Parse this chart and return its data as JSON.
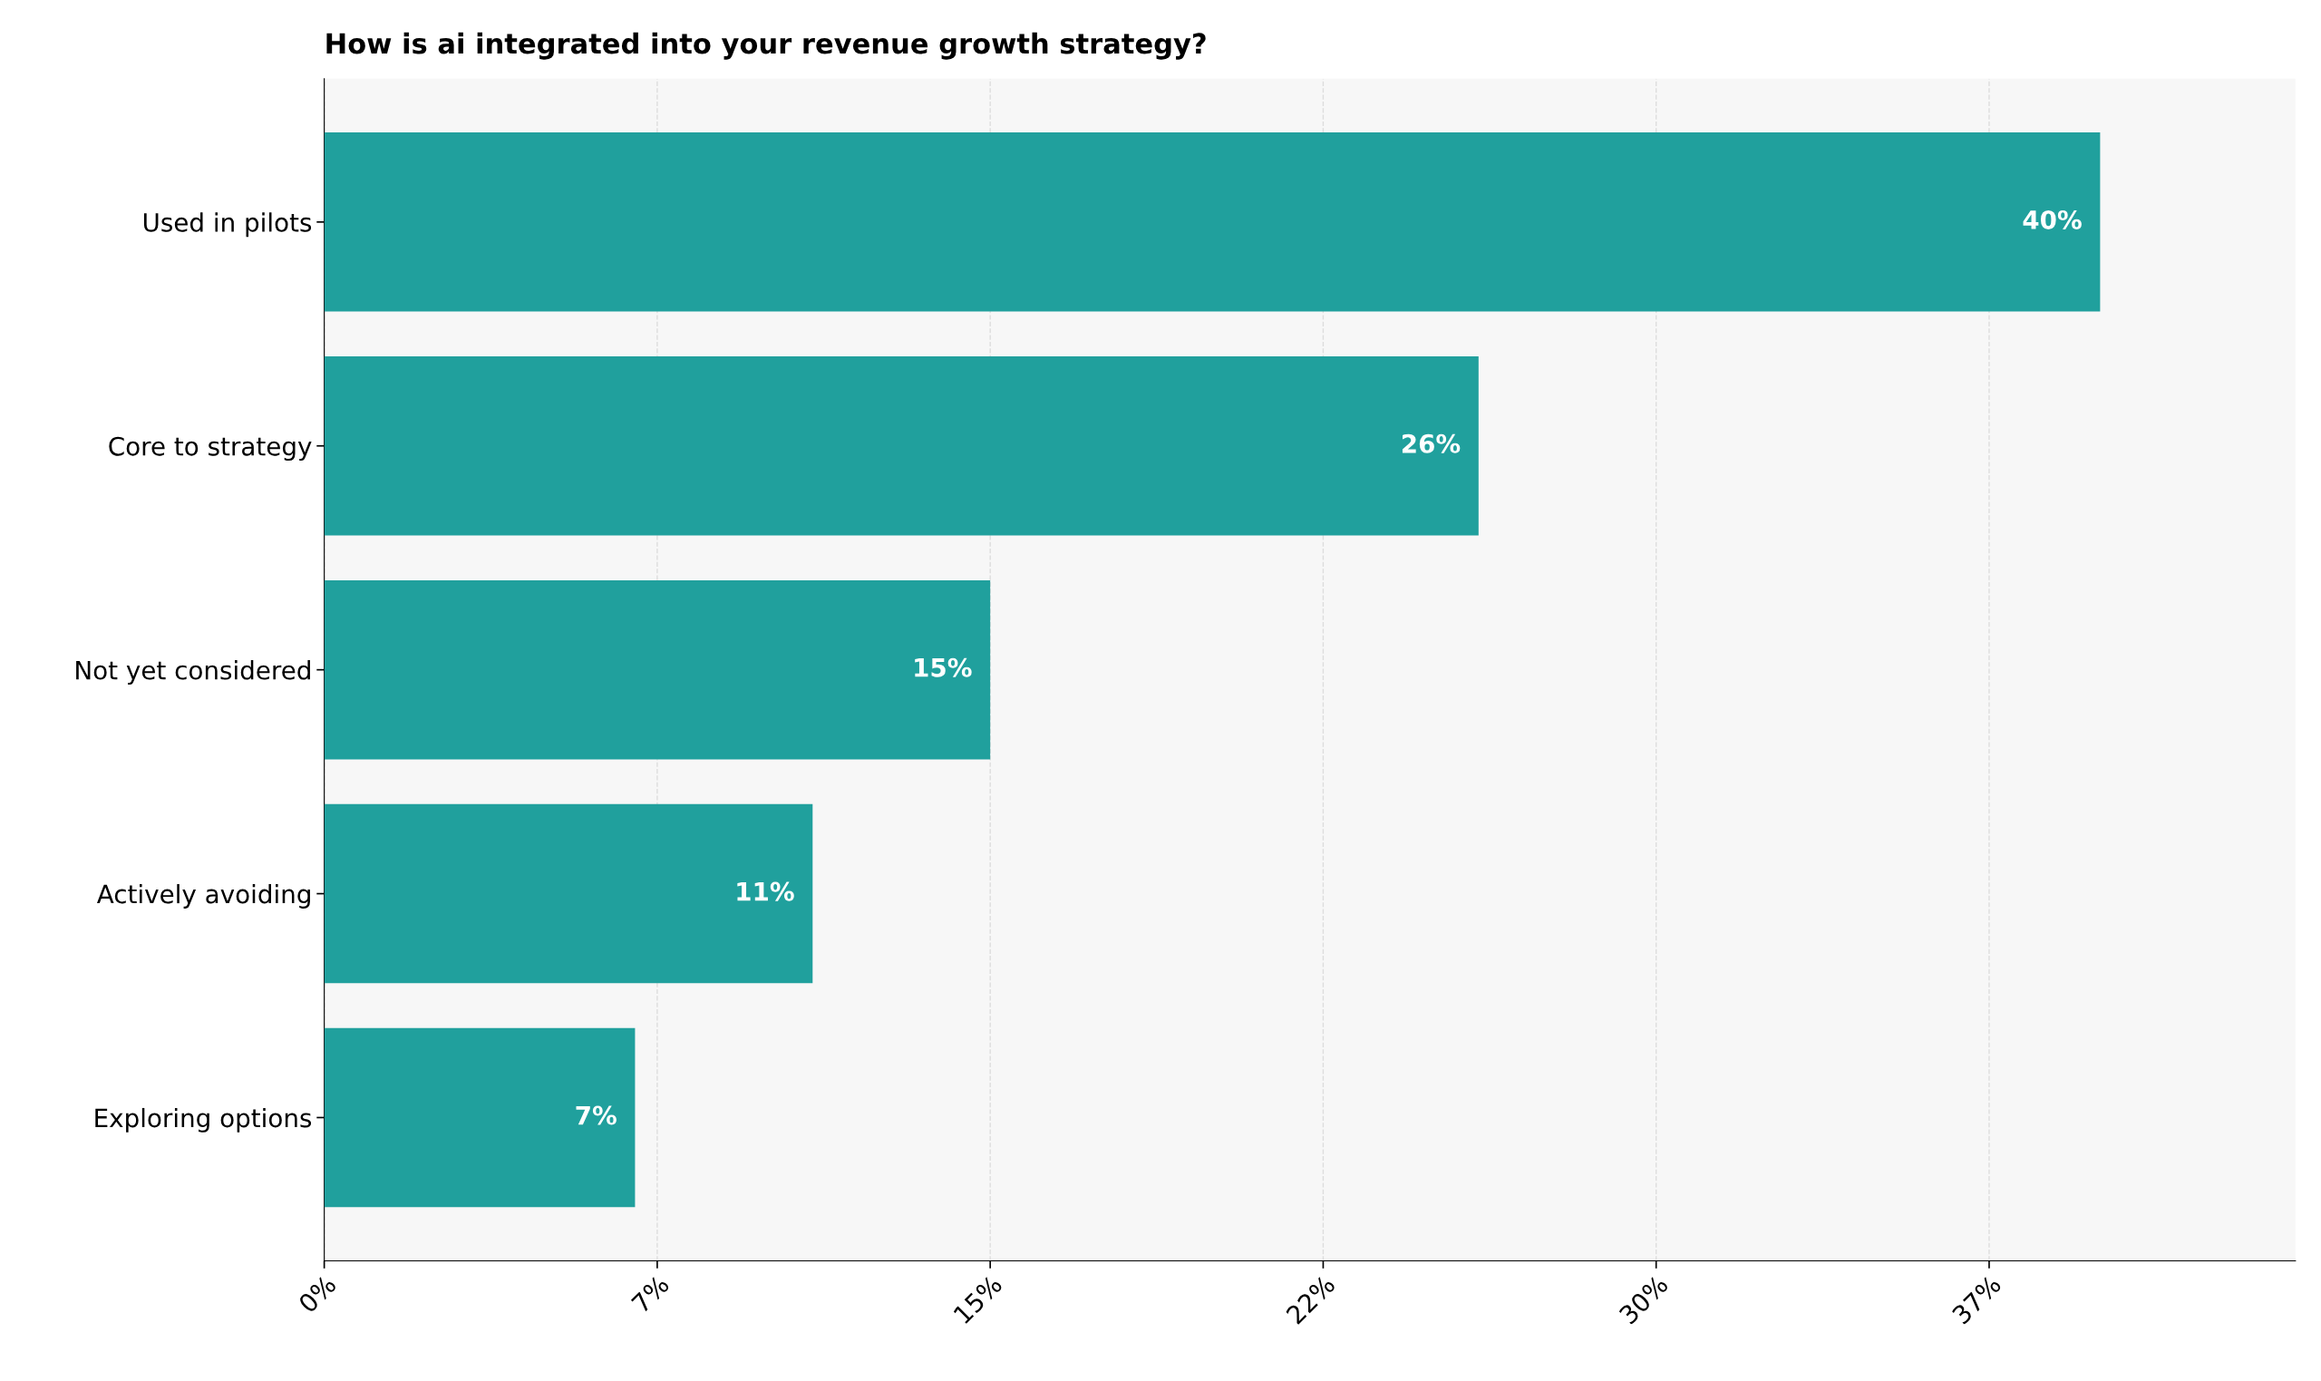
{
  "chart_data": {
    "type": "bar",
    "orientation": "horizontal",
    "title": "How is ai integrated into your revenue growth strategy?",
    "categories": [
      "Used in pilots",
      "Core to strategy",
      "Not yet considered",
      "Actively avoiding",
      "Exploring options"
    ],
    "values": [
      40,
      26,
      15,
      11,
      7
    ],
    "value_labels": [
      "40%",
      "26%",
      "15%",
      "11%",
      "7%"
    ],
    "color": "#20a09d",
    "xlim": [
      0,
      44.4
    ],
    "xticks": [
      {
        "value": 0,
        "label": "0%"
      },
      {
        "value": 7.5,
        "label": "7%"
      },
      {
        "value": 15,
        "label": "15%"
      },
      {
        "value": 22.5,
        "label": "22%"
      },
      {
        "value": 30,
        "label": "30%"
      },
      {
        "value": 37.5,
        "label": "37%"
      }
    ],
    "grid": "x",
    "legend": false
  }
}
